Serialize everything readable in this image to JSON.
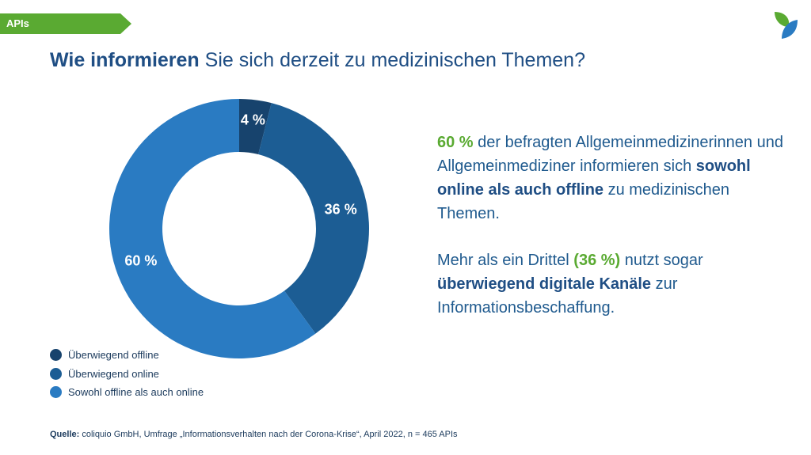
{
  "tag": {
    "label": "APIs"
  },
  "title": {
    "bold": "Wie informieren",
    "rest": " Sie sich derzeit zu medizinischen Themen?"
  },
  "chart_data": {
    "type": "pie",
    "categories": [
      "Überwiegend offline",
      "Überwiegend online",
      "Sowohl offline als auch online"
    ],
    "values": [
      4,
      36,
      60
    ],
    "labels": [
      "4 %",
      "36 %",
      "60 %"
    ],
    "colors": [
      "#17436d",
      "#1c5d94",
      "#2a7bc2"
    ],
    "legend_position": "bottom-left",
    "title": ""
  },
  "text": {
    "p1": {
      "highlight": "60 %",
      "part1": " der befragten Allgemeinmedizinerinnen und Allgemeinmediziner informieren sich ",
      "bold": "sowohl online als auch offline",
      "part2": " zu medizinischen Themen."
    },
    "p2": {
      "part1": "Mehr als ein Drittel ",
      "highlight": "(36 %)",
      "part2": " nutzt sogar ",
      "bold": "überwiegend digitale Kanäle",
      "part3": " zur Informationsbeschaffung."
    }
  },
  "source": {
    "label": "Quelle:",
    "text": " coliquio GmbH, Umfrage „Informationsverhalten nach der Corona-Krise“, April 2022, n = 465 APIs"
  },
  "logo": {
    "icon": "leaf-logo-icon",
    "colors": [
      "#5aaa32",
      "#2a7bc2"
    ]
  }
}
